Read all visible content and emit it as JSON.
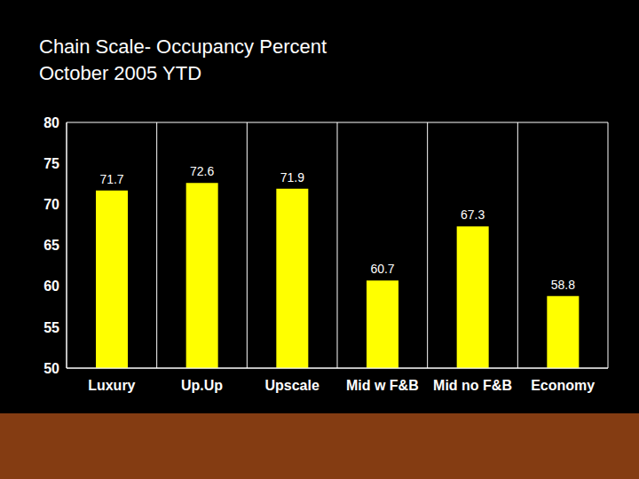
{
  "chart_data": {
    "type": "bar",
    "title": "Chain Scale- Occupancy Percent",
    "subtitle": "October 2005 YTD",
    "categories": [
      "Luxury",
      "Up.Up",
      "Upscale",
      "Mid w F&B",
      "Mid no F&B",
      "Economy"
    ],
    "values": [
      71.7,
      72.6,
      71.9,
      60.7,
      67.3,
      58.8
    ],
    "color": "#ffff00",
    "ylim": [
      50,
      80
    ],
    "yticks": [
      50,
      55,
      60,
      65,
      70,
      75,
      80
    ],
    "grid": true,
    "data_labels": true
  }
}
